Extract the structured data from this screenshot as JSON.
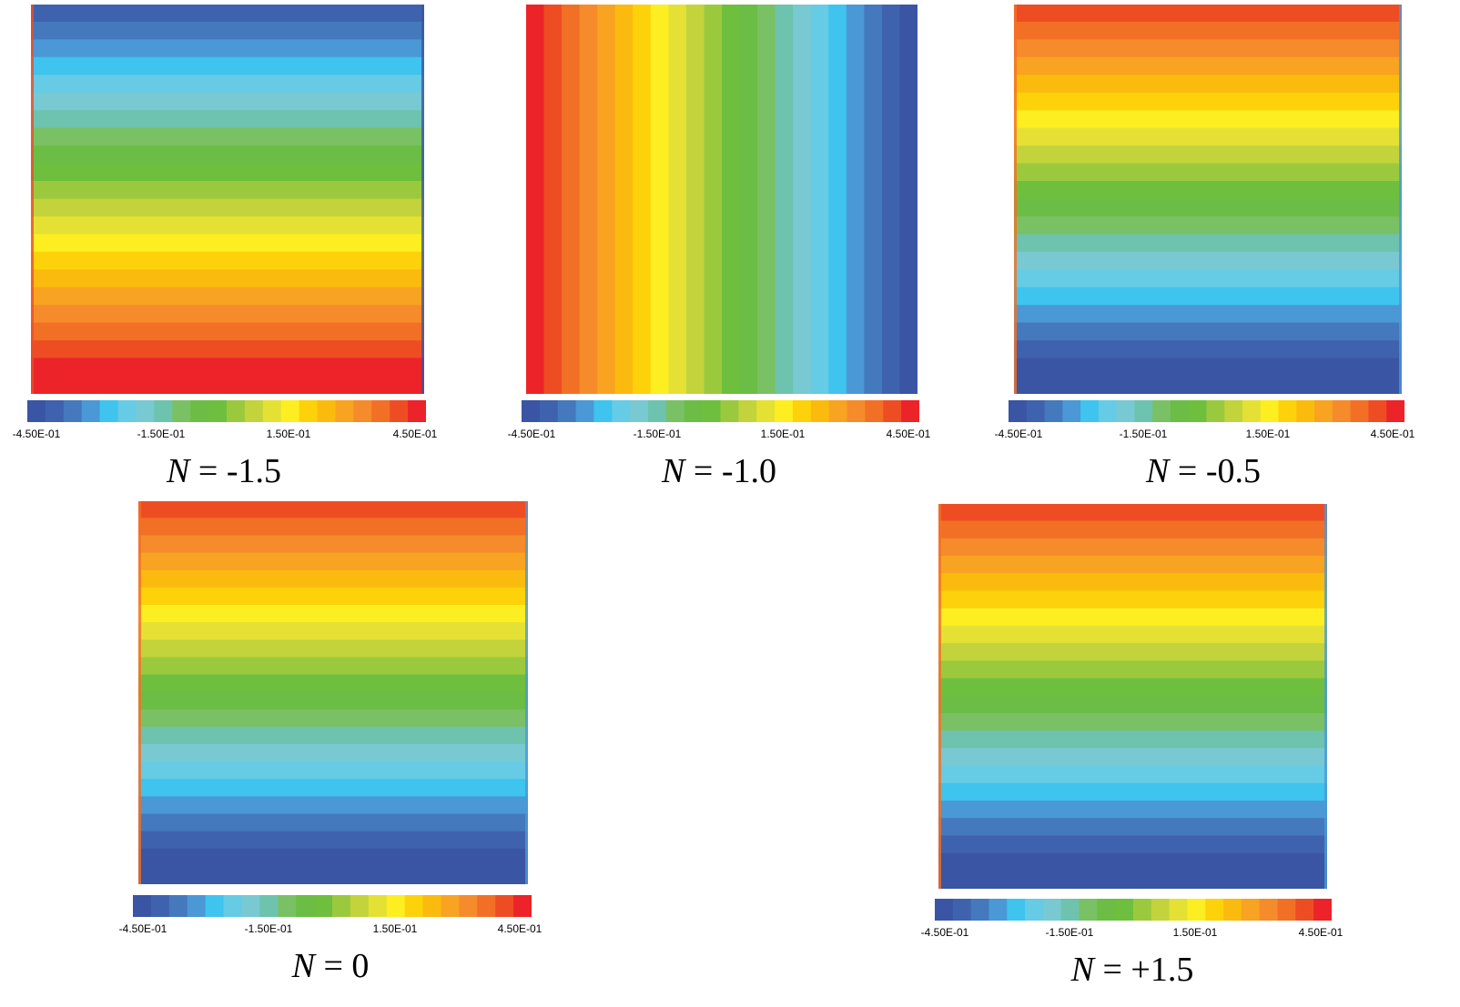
{
  "legend": {
    "colors": [
      "#3a55a4",
      "#3f62ae",
      "#4479bd",
      "#4b98d6",
      "#3ec4ee",
      "#66cbe4",
      "#78c9d2",
      "#6dc3ad",
      "#79c164",
      "#6bbd45",
      "#6fbf3e",
      "#9bc93e",
      "#c3d33b",
      "#e4e134",
      "#fcee21",
      "#fdd20a",
      "#fbbb0e",
      "#f8a321",
      "#f58b2a",
      "#f27025",
      "#ee4d24",
      "#ec2329"
    ],
    "tick_labels": [
      "-4.50E-01",
      "-1.50E-01",
      "1.50E-01",
      "4.50E-01"
    ]
  },
  "panels": [
    {
      "caption_var": "N",
      "caption_rest": " = -1.5",
      "orientation": "horizontal-low-top"
    },
    {
      "caption_var": "N",
      "caption_rest": " = -1.0",
      "orientation": "vertical-high-left"
    },
    {
      "caption_var": "N",
      "caption_rest": " = -0.5",
      "orientation": "horizontal-high-top"
    },
    {
      "caption_var": "N",
      "caption_rest": " = 0",
      "orientation": "horizontal-high-top"
    },
    {
      "caption_var": "N",
      "caption_rest": " = +1.5",
      "orientation": "horizontal-high-top"
    }
  ]
}
